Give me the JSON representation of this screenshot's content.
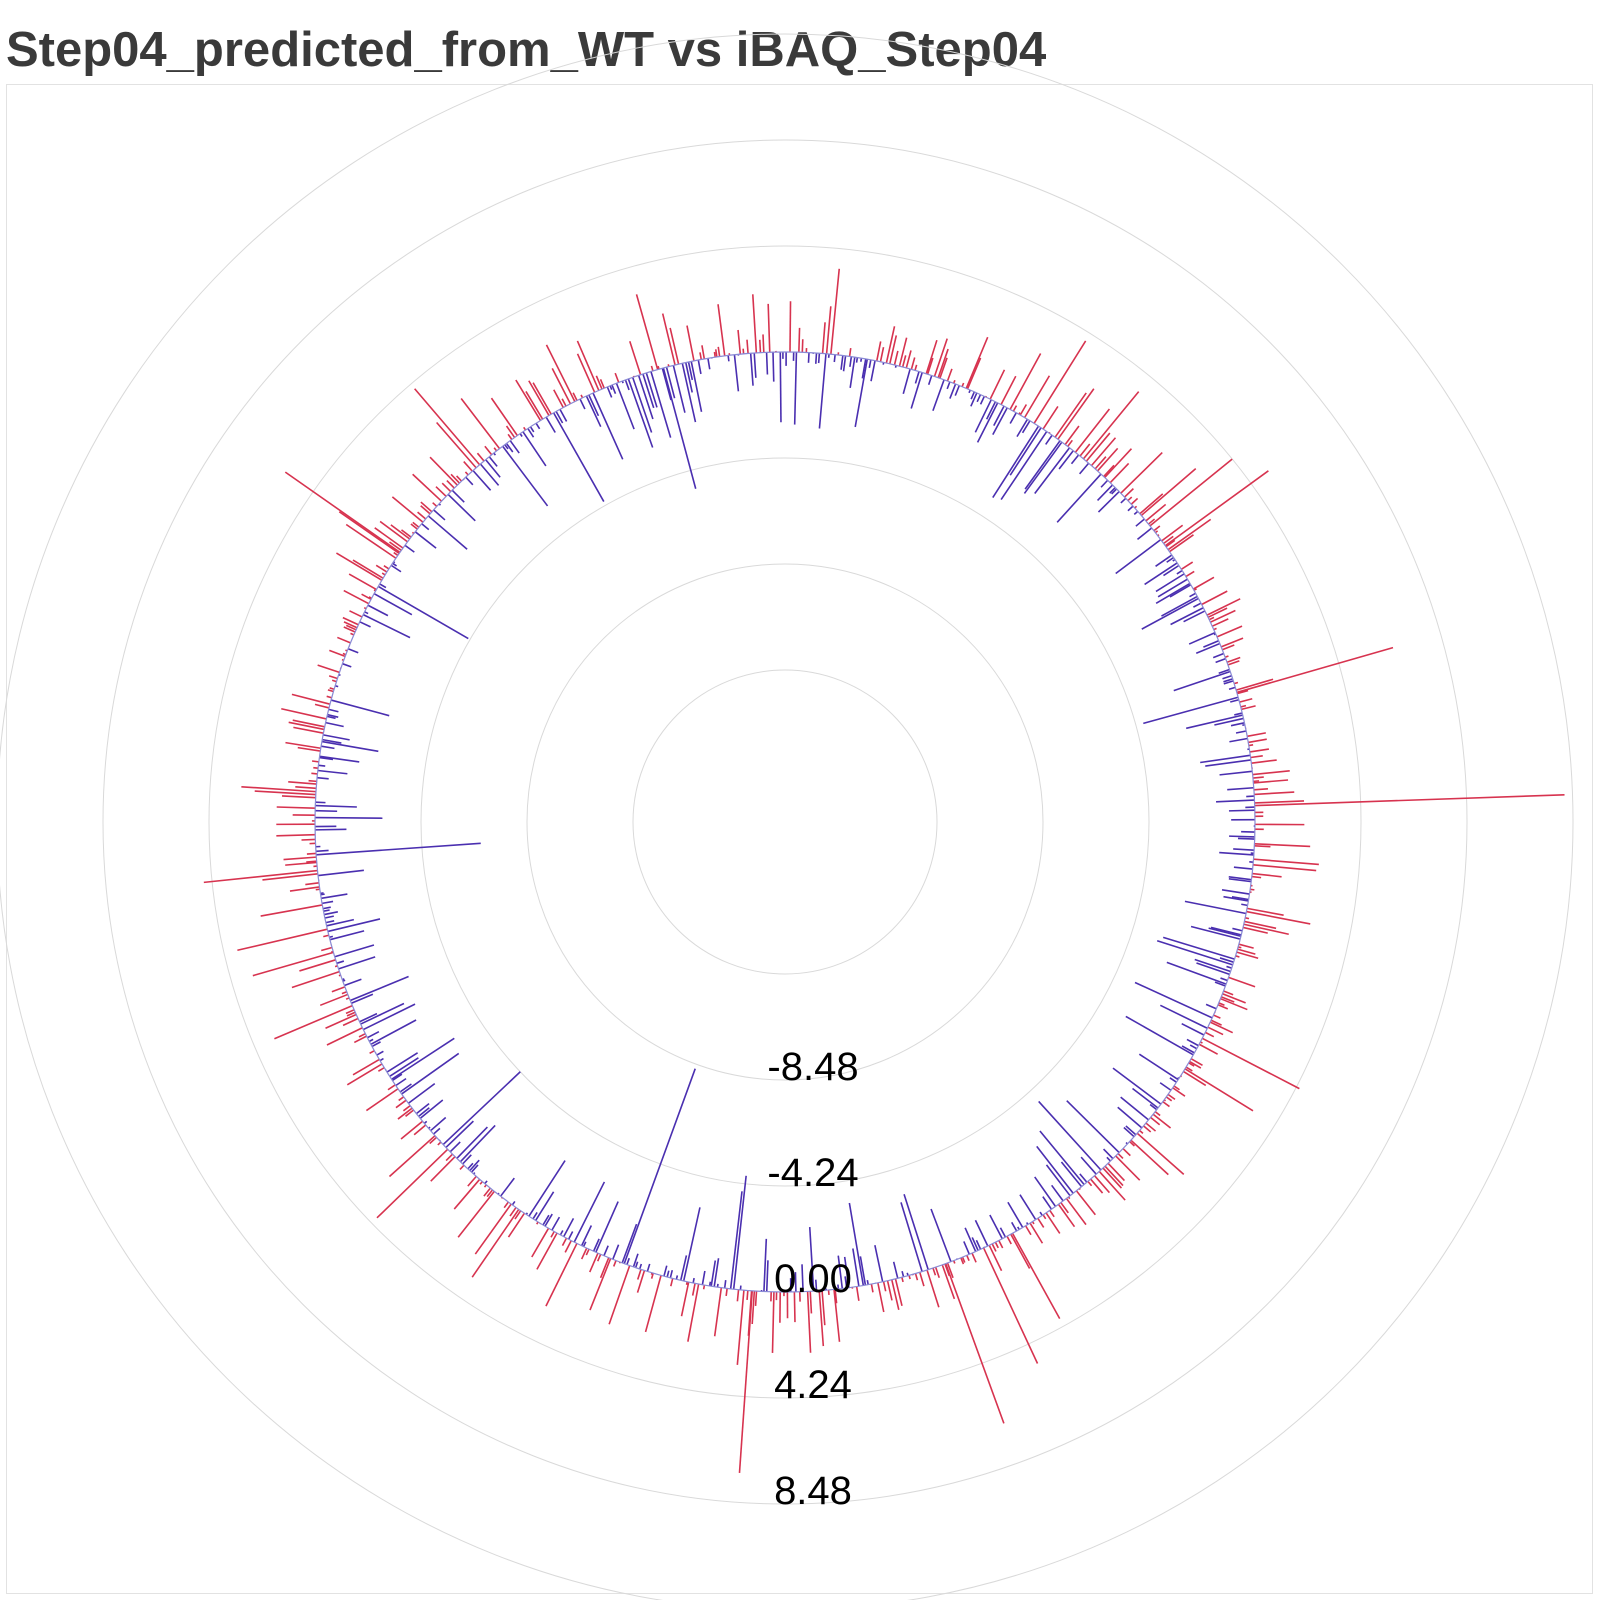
{
  "title": "Step04_predicted_from_WT vs iBAQ_Step04",
  "colors": {
    "positive": "#d7334f",
    "negative": "#4a2fb0",
    "baseline": "#8a8ad6",
    "grid": "#d9d9d9",
    "title": "#3a3a3a"
  },
  "chart_data": {
    "type": "radial-bar",
    "title": "Step04_predicted_from_WT vs iBAQ_Step04",
    "radial_range": [
      -12.72,
      12.72
    ],
    "radial_ticks": [
      -8.48,
      -4.24,
      0.0,
      4.24,
      8.48
    ],
    "tick_labels": [
      "-8.48",
      "-4.24",
      "0.00",
      "4.24",
      "8.48"
    ],
    "grid": true,
    "legend": "none",
    "n_bars_approx": 900,
    "outliers": [
      {
        "angle_deg": 88,
        "value": 12.4,
        "note": "right"
      },
      {
        "angle_deg": 74,
        "value": 6.5
      },
      {
        "angle_deg": 54,
        "value": 5.1
      },
      {
        "angle_deg": 200,
        "value": -8.3
      },
      {
        "angle_deg": 266,
        "value": -6.6
      },
      {
        "angle_deg": 305,
        "value": 5.6
      },
      {
        "angle_deg": 184,
        "value": 7.3
      },
      {
        "angle_deg": 160,
        "value": 6.8
      },
      {
        "angle_deg": 155,
        "value": 5.1
      },
      {
        "angle_deg": 345,
        "value": -5.0
      },
      {
        "angle_deg": 5,
        "value": -3.0
      }
    ],
    "series": [
      {
        "color": "positive",
        "sign": "positive (outward)"
      },
      {
        "color": "negative",
        "sign": "negative (inward)"
      }
    ]
  }
}
